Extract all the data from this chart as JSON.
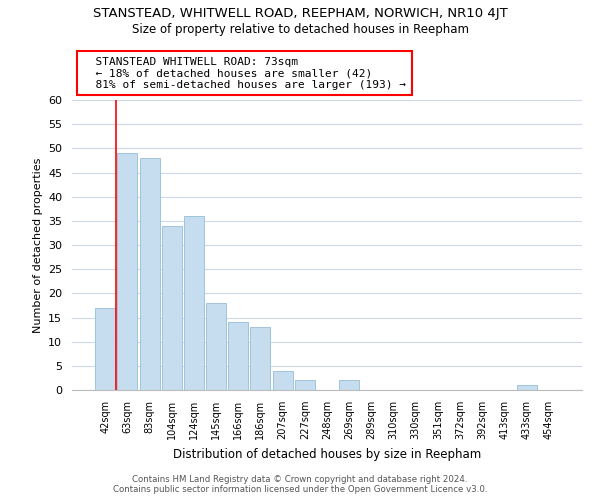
{
  "title": "STANSTEAD, WHITWELL ROAD, REEPHAM, NORWICH, NR10 4JT",
  "subtitle": "Size of property relative to detached houses in Reepham",
  "xlabel": "Distribution of detached houses by size in Reepham",
  "ylabel": "Number of detached properties",
  "bar_color": "#c5ddef",
  "bar_edge_color": "#a0c4de",
  "bins": [
    "42sqm",
    "63sqm",
    "83sqm",
    "104sqm",
    "124sqm",
    "145sqm",
    "166sqm",
    "186sqm",
    "207sqm",
    "227sqm",
    "248sqm",
    "269sqm",
    "289sqm",
    "310sqm",
    "330sqm",
    "351sqm",
    "372sqm",
    "392sqm",
    "413sqm",
    "433sqm",
    "454sqm"
  ],
  "values": [
    17,
    49,
    48,
    34,
    36,
    18,
    14,
    13,
    4,
    2,
    0,
    2,
    0,
    0,
    0,
    0,
    0,
    0,
    0,
    1,
    0
  ],
  "ylim": [
    0,
    60
  ],
  "yticks": [
    0,
    5,
    10,
    15,
    20,
    25,
    30,
    35,
    40,
    45,
    50,
    55,
    60
  ],
  "property_label": "STANSTEAD WHITWELL ROAD: 73sqm",
  "smaller_pct": 18,
  "smaller_count": 42,
  "larger_pct": 81,
  "larger_count": 193,
  "vline_bin_index": 1,
  "footer_line1": "Contains HM Land Registry data © Crown copyright and database right 2024.",
  "footer_line2": "Contains public sector information licensed under the Open Government Licence v3.0.",
  "background_color": "#ffffff",
  "grid_color": "#ccd9e8"
}
